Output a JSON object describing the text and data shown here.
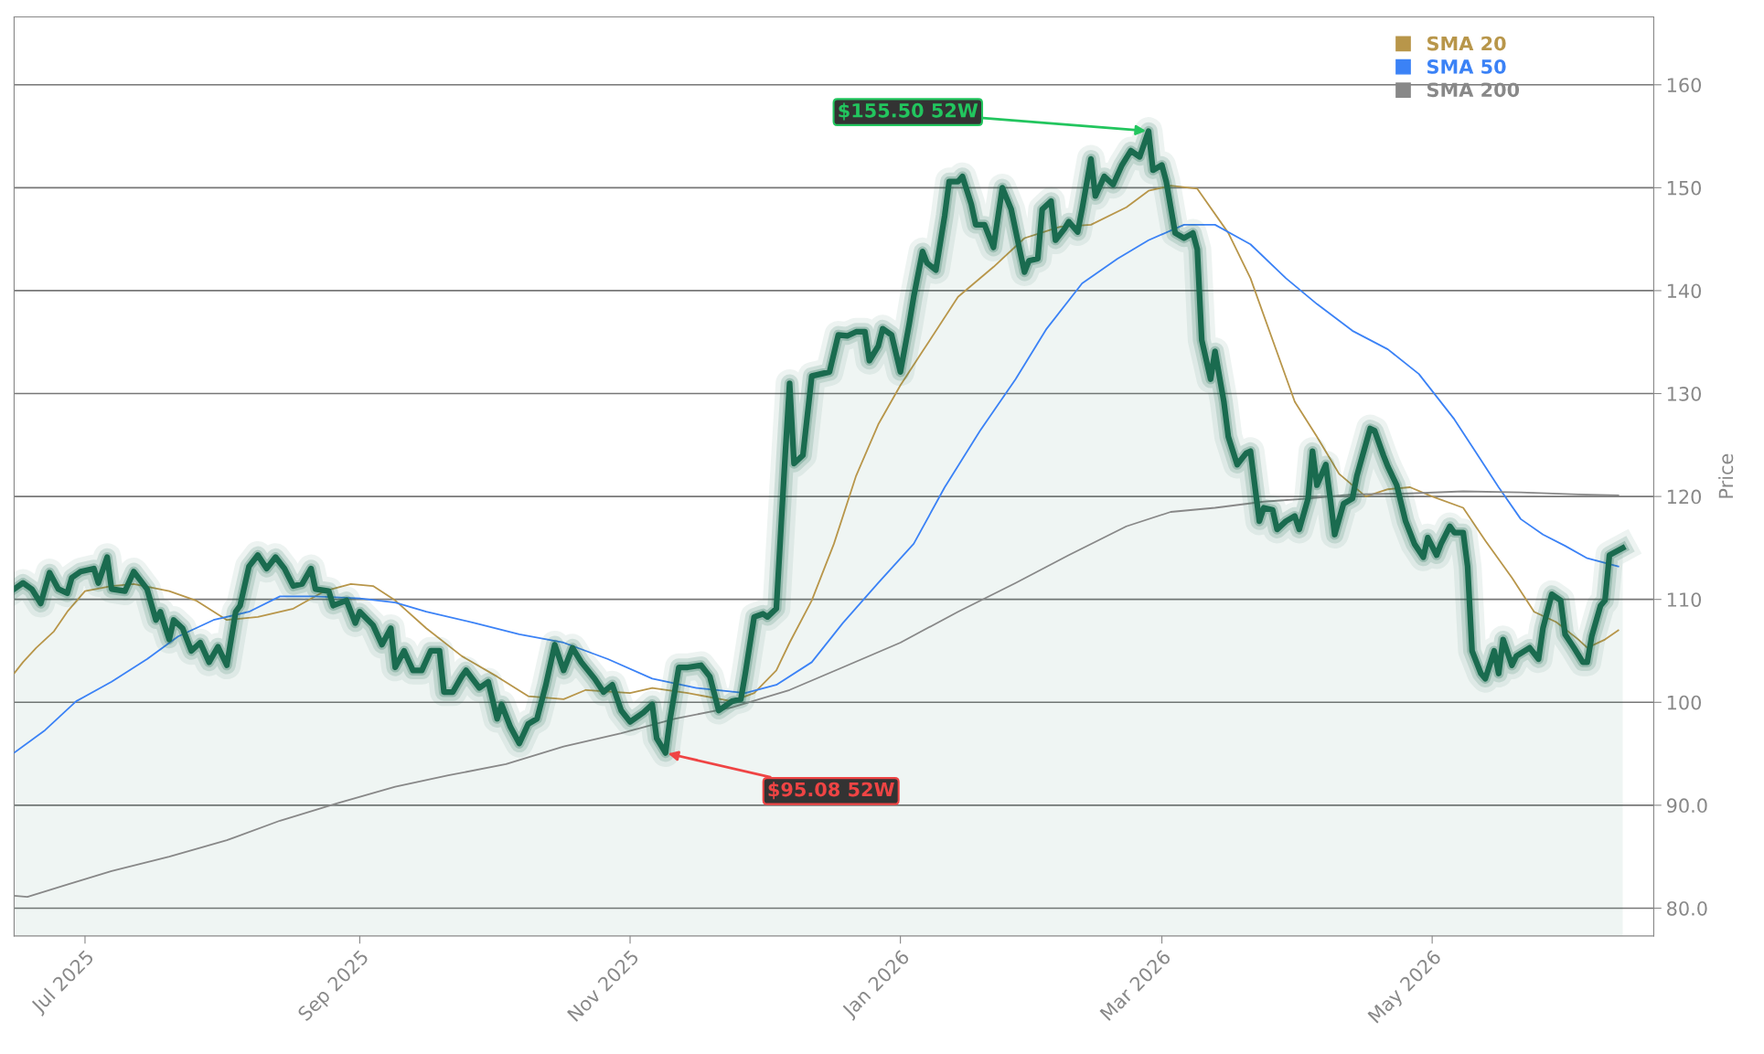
{
  "chart_data": {
    "type": "line",
    "ylabel": "Price",
    "xlim": [
      "2025-06-15",
      "2026-06-20"
    ],
    "ylim": [
      77.3,
      166.6
    ],
    "xticks": [
      {
        "value": "2025-07-01",
        "label": "Jul 2025"
      },
      {
        "value": "2025-09-01",
        "label": "Sep 2025"
      },
      {
        "value": "2025-11-01",
        "label": "Nov 2025"
      },
      {
        "value": "2026-01-01",
        "label": "Jan 2026"
      },
      {
        "value": "2026-03-01",
        "label": "Mar 2026"
      },
      {
        "value": "2026-05-01",
        "label": "May 2026"
      }
    ],
    "yticks": [
      {
        "value": 80,
        "label": "80.0"
      },
      {
        "value": 90,
        "label": "90.0"
      },
      100,
      110,
      120,
      130,
      140,
      150,
      160
    ],
    "grid": "y",
    "legend": "top right",
    "marker": "none",
    "line_style": "solid",
    "annotations": [
      {
        "text": "$155.50 52W",
        "x": "2026-02-26",
        "y": 155.5
      },
      {
        "text": "$95.08 52W",
        "x": "2025-11-09",
        "y": 95.08
      }
    ],
    "series": [
      {
        "type": "area",
        "color": "#1a6b4f",
        "x": [
          "2025-06-15",
          "2025-06-17",
          "2025-06-19",
          "2025-06-21",
          "2025-06-23",
          "2025-06-25",
          "2025-06-27",
          "2025-06-28",
          "2025-06-30",
          "2025-07-03",
          "2025-07-04",
          "2025-07-06",
          "2025-07-07",
          "2025-07-10",
          "2025-07-12",
          "2025-07-15",
          "2025-07-17",
          "2025-07-18",
          "2025-07-20",
          "2025-07-21",
          "2025-07-23",
          "2025-07-25",
          "2025-07-27",
          "2025-07-29",
          "2025-07-31",
          "2025-08-02",
          "2025-08-04",
          "2025-08-05",
          "2025-08-07",
          "2025-08-09",
          "2025-08-11",
          "2025-08-13",
          "2025-08-15",
          "2025-08-17",
          "2025-08-19",
          "2025-08-21",
          "2025-08-22",
          "2025-08-25",
          "2025-08-26",
          "2025-08-29",
          "2025-08-31",
          "2025-09-01",
          "2025-09-04",
          "2025-09-06",
          "2025-09-08",
          "2025-09-09",
          "2025-09-11",
          "2025-09-13",
          "2025-09-15",
          "2025-09-17",
          "2025-09-19",
          "2025-09-20",
          "2025-09-22",
          "2025-09-24",
          "2025-09-25",
          "2025-09-28",
          "2025-09-30",
          "2025-10-02",
          "2025-10-03",
          "2025-10-05",
          "2025-10-07",
          "2025-10-09",
          "2025-10-11",
          "2025-10-13",
          "2025-10-15",
          "2025-10-17",
          "2025-10-19",
          "2025-10-21",
          "2025-10-24",
          "2025-10-26",
          "2025-10-28",
          "2025-10-30",
          "2025-11-01",
          "2025-11-04",
          "2025-11-06",
          "2025-11-07",
          "2025-11-09",
          "2025-11-10",
          "2025-11-12",
          "2025-11-14",
          "2025-11-17",
          "2025-11-19",
          "2025-11-21",
          "2025-11-24",
          "2025-11-26",
          "2025-11-27",
          "2025-11-29",
          "2025-12-01",
          "2025-12-02",
          "2025-12-04",
          "2025-12-06",
          "2025-12-07",
          "2025-12-08",
          "2025-12-10",
          "2025-12-12",
          "2025-12-14",
          "2025-12-16",
          "2025-12-18",
          "2025-12-20",
          "2025-12-22",
          "2025-12-24",
          "2025-12-25",
          "2025-12-27",
          "2025-12-28",
          "2025-12-30",
          "2026-01-01",
          "2026-01-03",
          "2026-01-04",
          "2026-01-06",
          "2026-01-07",
          "2026-01-09",
          "2026-01-11",
          "2026-01-12",
          "2026-01-14",
          "2026-01-15",
          "2026-01-17",
          "2026-01-18",
          "2026-01-20",
          "2026-01-22",
          "2026-01-24",
          "2026-01-26",
          "2026-01-28",
          "2026-01-29",
          "2026-01-30",
          "2026-02-01",
          "2026-02-02",
          "2026-02-04",
          "2026-02-05",
          "2026-02-07",
          "2026-02-08",
          "2026-02-10",
          "2026-02-11",
          "2026-02-13",
          "2026-02-14",
          "2026-02-16",
          "2026-02-18",
          "2026-02-20",
          "2026-02-22",
          "2026-02-24",
          "2026-02-26",
          "2026-02-27",
          "2026-03-01",
          "2026-03-02",
          "2026-03-04",
          "2026-03-06",
          "2026-03-08",
          "2026-03-09",
          "2026-03-10",
          "2026-03-12",
          "2026-03-13",
          "2026-03-15",
          "2026-03-16",
          "2026-03-18",
          "2026-03-20",
          "2026-03-21",
          "2026-03-23",
          "2026-03-24",
          "2026-03-26",
          "2026-03-27",
          "2026-03-29",
          "2026-03-31",
          "2026-04-01",
          "2026-04-03",
          "2026-04-04",
          "2026-04-05",
          "2026-04-07",
          "2026-04-08",
          "2026-04-09",
          "2026-04-11",
          "2026-04-13",
          "2026-04-14",
          "2026-04-17",
          "2026-04-18",
          "2026-04-20",
          "2026-04-21",
          "2026-04-23",
          "2026-04-25",
          "2026-04-27",
          "2026-04-29",
          "2026-04-30",
          "2026-05-02",
          "2026-05-03",
          "2026-05-05",
          "2026-05-06",
          "2026-05-08",
          "2026-05-09",
          "2026-05-10",
          "2026-05-12",
          "2026-05-13",
          "2026-05-15",
          "2026-05-16",
          "2026-05-17",
          "2026-05-19",
          "2026-05-20",
          "2026-05-23",
          "2026-05-25",
          "2026-05-26",
          "2026-05-28",
          "2026-05-30",
          "2026-05-31",
          "2026-06-02",
          "2026-06-04",
          "2026-06-05",
          "2026-06-06",
          "2026-06-08",
          "2026-06-09",
          "2026-06-10",
          "2026-06-13"
        ],
        "values": [
          111.0,
          111.6,
          111.0,
          109.6,
          112.6,
          111.0,
          110.6,
          112.1,
          112.7,
          113.0,
          111.6,
          114.1,
          111.0,
          110.8,
          112.7,
          111.0,
          108.0,
          108.8,
          106.1,
          108.0,
          107.2,
          105.0,
          105.8,
          103.9,
          105.4,
          103.6,
          108.8,
          109.4,
          113.2,
          114.3,
          113.0,
          114.1,
          113.0,
          111.3,
          111.5,
          113.0,
          111.0,
          110.8,
          109.4,
          109.9,
          107.7,
          108.8,
          107.5,
          105.6,
          107.2,
          103.4,
          105.0,
          103.1,
          103.1,
          105.0,
          105.0,
          101.0,
          101.0,
          102.5,
          103.1,
          101.4,
          102.0,
          98.4,
          99.8,
          97.6,
          96.0,
          97.9,
          98.4,
          101.7,
          105.6,
          103.1,
          105.3,
          103.9,
          102.3,
          101.0,
          101.7,
          99.2,
          98.1,
          99.0,
          99.8,
          96.5,
          95.08,
          98.3,
          103.4,
          103.4,
          103.6,
          102.5,
          99.2,
          100.1,
          100.3,
          102.8,
          108.3,
          108.6,
          108.3,
          109.1,
          124.0,
          131.0,
          123.2,
          124.0,
          131.7,
          131.9,
          132.1,
          135.7,
          135.6,
          136.0,
          136.0,
          133.2,
          134.6,
          136.3,
          135.7,
          132.1,
          136.8,
          139.4,
          143.8,
          142.7,
          142.0,
          147.3,
          150.6,
          150.6,
          151.1,
          148.4,
          146.4,
          146.4,
          144.2,
          150.0,
          147.9,
          143.8,
          141.8,
          142.9,
          143.1,
          147.9,
          148.7,
          144.9,
          146.0,
          146.7,
          145.7,
          147.9,
          152.8,
          149.2,
          151.1,
          150.3,
          152.2,
          153.6,
          153.0,
          155.5,
          151.7,
          152.2,
          150.6,
          145.6,
          145.1,
          145.6,
          144.0,
          135.2,
          131.4,
          134.1,
          129.2,
          125.8,
          123.1,
          124.2,
          124.4,
          117.6,
          118.9,
          118.7,
          116.8,
          117.6,
          118.1,
          116.8,
          119.8,
          124.4,
          121.1,
          123.1,
          119.8,
          116.3,
          119.3,
          119.8,
          122.0,
          126.6,
          126.4,
          124.0,
          122.9,
          121.1,
          117.6,
          115.4,
          114.1,
          116.0,
          114.3,
          115.4,
          117.1,
          116.5,
          116.5,
          113.2,
          105.0,
          102.8,
          102.3,
          105.0,
          102.8,
          106.1,
          103.6,
          104.5,
          105.3,
          104.2,
          107.2,
          110.5,
          109.9,
          106.6,
          105.3,
          103.9,
          103.9,
          106.4,
          109.4,
          109.9,
          114.3,
          115.0
        ]
      },
      {
        "name": "SMA 20",
        "color": "#b8964a",
        "x": [
          "2025-06-15",
          "2025-06-17",
          "2025-06-20",
          "2025-06-24",
          "2025-06-27",
          "2025-07-01",
          "2025-07-07",
          "2025-07-12",
          "2025-07-20",
          "2025-07-26",
          "2025-08-02",
          "2025-08-09",
          "2025-08-17",
          "2025-08-24",
          "2025-08-30",
          "2025-09-04",
          "2025-09-09",
          "2025-09-16",
          "2025-09-24",
          "2025-10-02",
          "2025-10-09",
          "2025-10-17",
          "2025-10-22",
          "2025-11-01",
          "2025-11-06",
          "2025-11-14",
          "2025-11-24",
          "2025-11-29",
          "2025-12-04",
          "2025-12-07",
          "2025-12-12",
          "2025-12-17",
          "2025-12-22",
          "2025-12-27",
          "2026-01-01",
          "2026-01-06",
          "2026-01-14",
          "2026-01-22",
          "2026-01-29",
          "2026-02-06",
          "2026-02-13",
          "2026-02-21",
          "2026-02-26",
          "2026-03-03",
          "2026-03-09",
          "2026-03-16",
          "2026-03-21",
          "2026-03-26",
          "2026-03-31",
          "2026-04-05",
          "2026-04-10",
          "2026-04-16",
          "2026-04-21",
          "2026-04-26",
          "2026-05-01",
          "2026-05-08",
          "2026-05-13",
          "2026-05-19",
          "2026-05-24",
          "2026-05-29",
          "2026-06-03",
          "2026-06-05",
          "2026-06-09",
          "2026-06-12"
        ],
        "values": [
          102.8,
          103.9,
          105.3,
          106.9,
          108.8,
          110.8,
          111.3,
          111.5,
          110.8,
          109.9,
          108.0,
          108.3,
          109.1,
          110.8,
          111.5,
          111.3,
          109.9,
          107.2,
          104.5,
          102.5,
          100.6,
          100.3,
          101.2,
          100.9,
          101.4,
          100.9,
          100.1,
          100.9,
          103.1,
          105.8,
          109.9,
          115.4,
          122.0,
          127.0,
          130.8,
          134.1,
          139.4,
          142.3,
          145.1,
          146.2,
          146.4,
          148.1,
          149.7,
          150.2,
          149.9,
          145.6,
          141.2,
          135.2,
          129.2,
          125.8,
          122.2,
          120.0,
          120.7,
          120.9,
          120.0,
          118.9,
          115.7,
          112.1,
          108.8,
          107.8,
          106.1,
          105.3,
          106.1,
          107.0
        ]
      },
      {
        "name": "SMA 50",
        "color": "#3b82f6",
        "x": [
          "2025-06-15",
          "2025-06-22",
          "2025-06-29",
          "2025-07-07",
          "2025-07-15",
          "2025-07-22",
          "2025-07-30",
          "2025-08-07",
          "2025-08-14",
          "2025-08-22",
          "2025-09-01",
          "2025-09-09",
          "2025-09-16",
          "2025-09-27",
          "2025-10-07",
          "2025-10-17",
          "2025-10-27",
          "2025-11-06",
          "2025-11-16",
          "2025-11-27",
          "2025-12-04",
          "2025-12-12",
          "2025-12-19",
          "2025-12-27",
          "2026-01-04",
          "2026-01-11",
          "2026-01-19",
          "2026-01-27",
          "2026-02-03",
          "2026-02-11",
          "2026-02-19",
          "2026-02-26",
          "2026-03-06",
          "2026-03-13",
          "2026-03-21",
          "2026-03-29",
          "2026-04-05",
          "2026-04-13",
          "2026-04-21",
          "2026-04-28",
          "2026-05-06",
          "2026-05-11",
          "2026-05-16",
          "2026-05-21",
          "2026-05-26",
          "2026-05-31",
          "2026-06-05",
          "2026-06-12"
        ],
        "values": [
          95.1,
          97.3,
          100.1,
          102.0,
          104.2,
          106.4,
          108.0,
          108.8,
          110.3,
          110.3,
          110.1,
          109.7,
          108.8,
          107.7,
          106.6,
          105.8,
          104.2,
          102.3,
          101.4,
          100.9,
          101.7,
          103.9,
          107.7,
          111.6,
          115.4,
          120.9,
          126.4,
          131.4,
          136.3,
          140.7,
          143.1,
          144.9,
          146.4,
          146.4,
          144.5,
          141.2,
          138.7,
          136.1,
          134.3,
          131.9,
          127.5,
          124.2,
          120.9,
          117.8,
          116.3,
          115.2,
          114.0,
          113.2
        ]
      },
      {
        "name": "SMA 200",
        "color": "#888888",
        "x": [
          "2025-06-15",
          "2025-06-18",
          "2025-06-27",
          "2025-07-07",
          "2025-07-20",
          "2025-08-02",
          "2025-08-14",
          "2025-08-27",
          "2025-09-09",
          "2025-09-21",
          "2025-10-04",
          "2025-10-17",
          "2025-10-30",
          "2025-11-11",
          "2025-11-24",
          "2025-12-07",
          "2025-12-19",
          "2026-01-01",
          "2026-01-14",
          "2026-01-27",
          "2026-02-08",
          "2026-02-21",
          "2026-03-03",
          "2026-03-13",
          "2026-03-24",
          "2026-04-03",
          "2026-04-13",
          "2026-04-26",
          "2026-05-08",
          "2026-05-21",
          "2026-06-03",
          "2026-06-12"
        ],
        "values": [
          81.2,
          81.1,
          82.3,
          83.6,
          85.0,
          86.6,
          88.5,
          90.2,
          91.8,
          92.9,
          94.0,
          95.7,
          97.0,
          98.4,
          99.5,
          101.2,
          103.4,
          105.8,
          108.8,
          111.6,
          114.3,
          117.1,
          118.5,
          118.9,
          119.5,
          119.8,
          120.2,
          120.3,
          120.5,
          120.4,
          120.2,
          120.1
        ]
      }
    ]
  }
}
